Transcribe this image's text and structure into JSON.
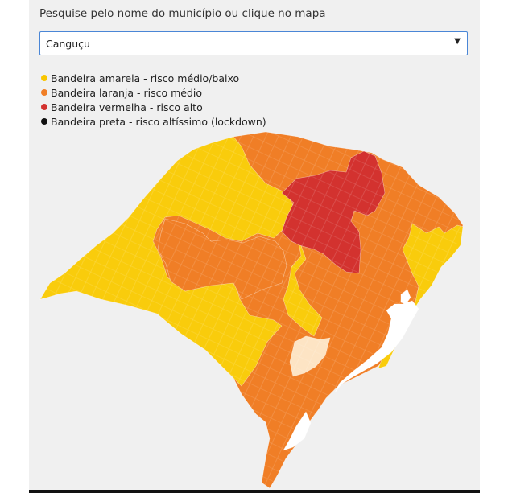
{
  "search": {
    "prompt": "Pesquise pelo nome do município ou clique no mapa",
    "selected": "Canguçu",
    "arrow": "▼"
  },
  "legend": {
    "items": [
      {
        "label": "Bandeira amarela - risco médio/baixo",
        "color": "#f9c600"
      },
      {
        "label": "Bandeira laranja - risco médio",
        "color": "#f07e26"
      },
      {
        "label": "Bandeira vermelha - risco alto",
        "color": "#d3322f"
      },
      {
        "label": "Bandeira preta - risco altíssimo (lockdown)",
        "color": "#111111"
      }
    ]
  },
  "map": {
    "colors": {
      "yellow": "#f9cc0c",
      "orange": "#f07e26",
      "red": "#d3322f",
      "highlight": "#fde4c4",
      "water": "#ffffff"
    }
  }
}
